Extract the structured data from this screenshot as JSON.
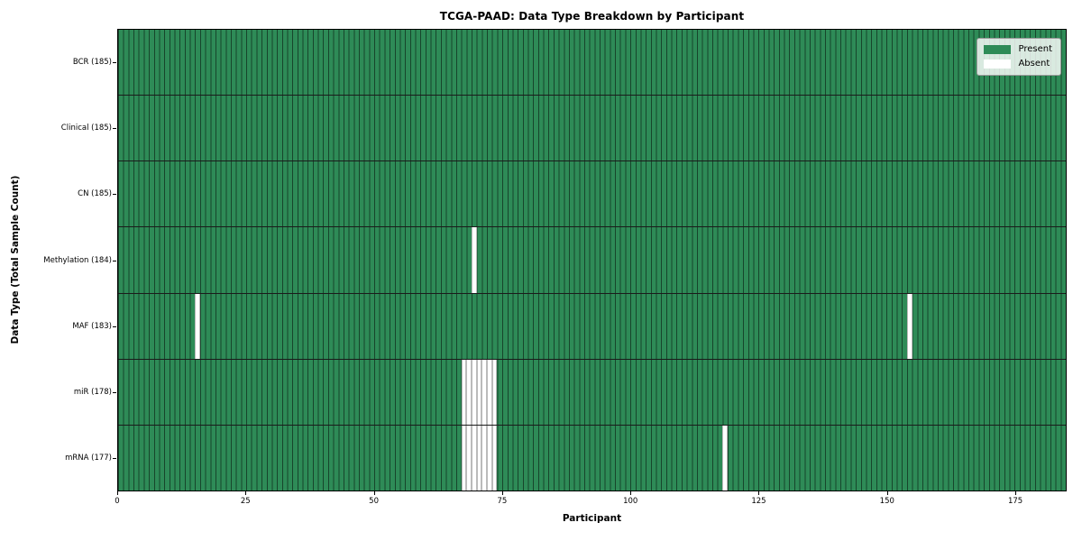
{
  "title": "TCGA-PAAD: Data Type Breakdown by Participant",
  "axes": {
    "xlabel": "Participant",
    "ylabel": "Data Type (Total Sample Count)"
  },
  "legend": {
    "items": [
      {
        "label": "Present",
        "color": "#2e8b57"
      },
      {
        "label": "Absent",
        "color": "#ffffff"
      }
    ]
  },
  "chart_data": {
    "type": "heatmap",
    "title": "TCGA-PAAD: Data Type Breakdown by Participant",
    "xlabel": "Participant",
    "ylabel": "Data Type (Total Sample Count)",
    "n_participants": 185,
    "x_range": [
      0,
      185
    ],
    "x_ticks": [
      0,
      25,
      50,
      75,
      100,
      125,
      150,
      175
    ],
    "grid": false,
    "legend_position": "upper right",
    "colors": {
      "present": "#2e8b57",
      "absent": "#ffffff",
      "cell_edge": "rgba(0,0,0,0.5)",
      "row_separator": "#1b1b1b"
    },
    "rows": [
      {
        "label": "BCR (185)",
        "data_type": "BCR",
        "total_samples": 185,
        "absent_participant_indices": []
      },
      {
        "label": "Clinical (185)",
        "data_type": "Clinical",
        "total_samples": 185,
        "absent_participant_indices": []
      },
      {
        "label": "CN (185)",
        "data_type": "CN",
        "total_samples": 185,
        "absent_participant_indices": []
      },
      {
        "label": "Methylation (184)",
        "data_type": "Methylation",
        "total_samples": 184,
        "absent_participant_indices": [
          69
        ]
      },
      {
        "label": "MAF (183)",
        "data_type": "MAF",
        "total_samples": 183,
        "absent_participant_indices": [
          15,
          154
        ]
      },
      {
        "label": "miR (178)",
        "data_type": "miR",
        "total_samples": 178,
        "absent_participant_indices": [
          67,
          68,
          69,
          70,
          71,
          72,
          73
        ]
      },
      {
        "label": "mRNA (177)",
        "data_type": "mRNA",
        "total_samples": 177,
        "absent_participant_indices": [
          67,
          68,
          69,
          70,
          71,
          72,
          73,
          118
        ]
      }
    ]
  }
}
